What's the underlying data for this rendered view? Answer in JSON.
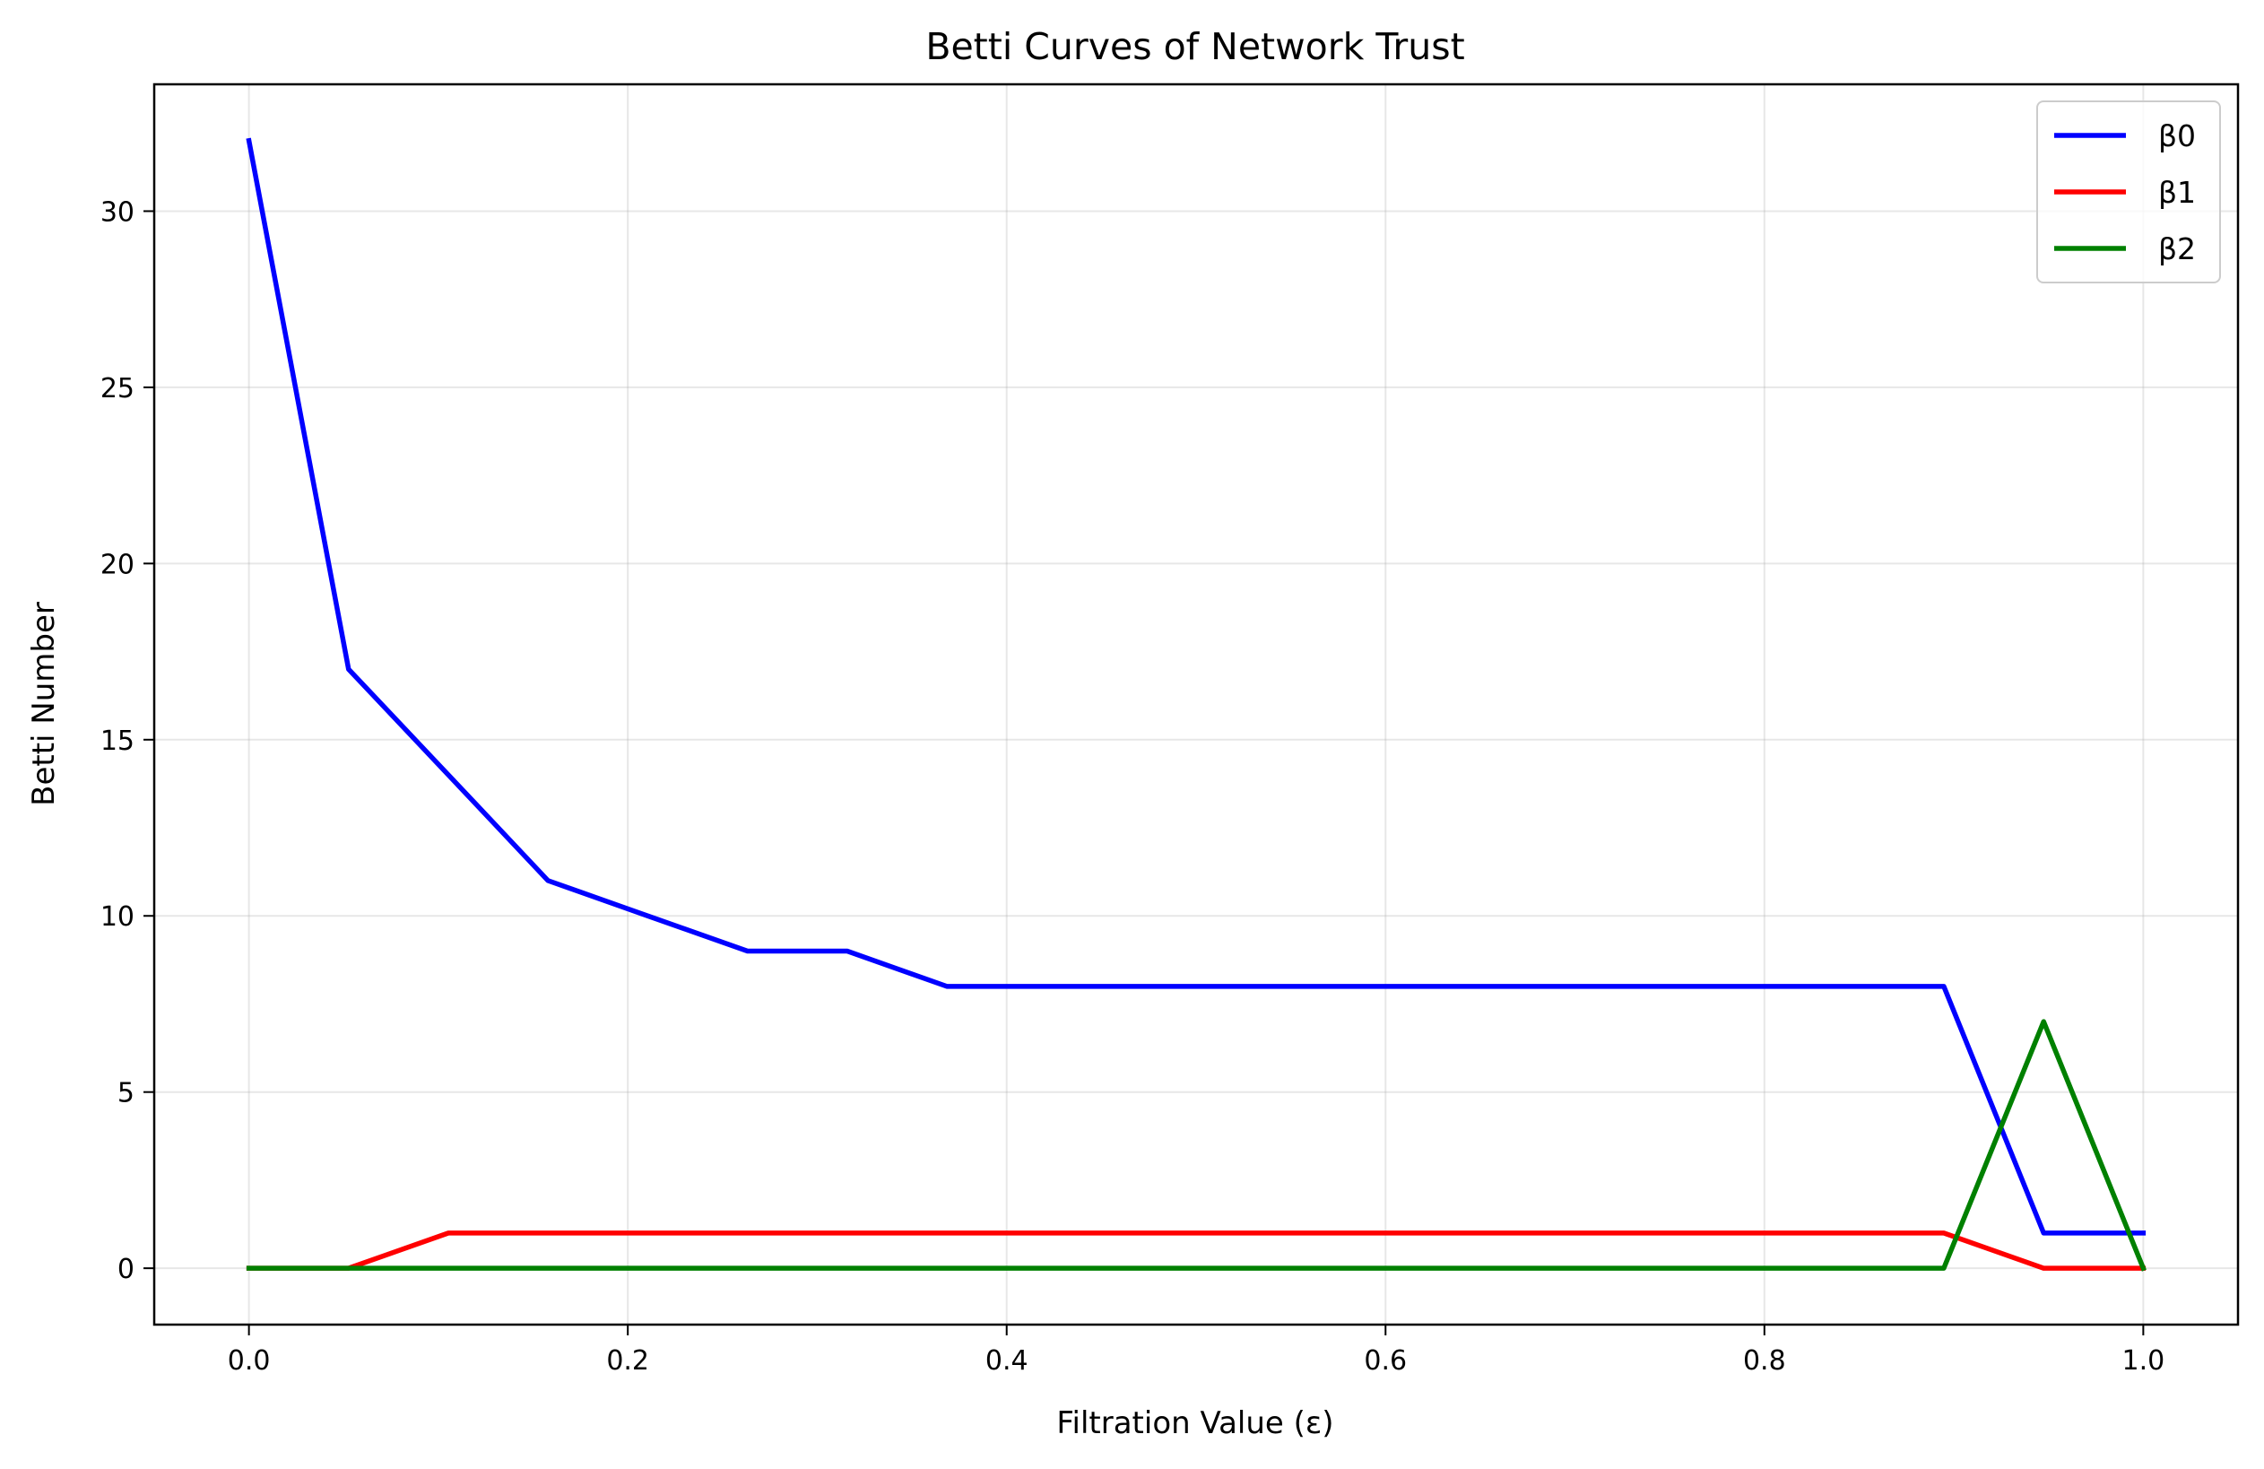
{
  "chart_data": {
    "type": "line",
    "title": "Betti Curves of Network Trust",
    "xlabel": "Filtration Value (ε)",
    "ylabel": "Betti Number",
    "xlim": [
      -0.05,
      1.05
    ],
    "ylim": [
      -1.6,
      33.6
    ],
    "xticks": [
      0.0,
      0.2,
      0.4,
      0.6,
      0.8,
      1.0
    ],
    "xtick_labels": [
      "0.0",
      "0.2",
      "0.4",
      "0.6",
      "0.8",
      "1.0"
    ],
    "yticks": [
      0,
      5,
      10,
      15,
      20,
      25,
      30
    ],
    "ytick_labels": [
      "0",
      "5",
      "10",
      "15",
      "20",
      "25",
      "30"
    ],
    "grid": true,
    "legend_position": "top-right",
    "series": [
      {
        "name": "β0",
        "color": "#0000ff",
        "x": [
          0.0,
          0.0526,
          0.1053,
          0.1579,
          0.2105,
          0.2632,
          0.3158,
          0.3684,
          0.8947,
          0.9474,
          1.0
        ],
        "y": [
          32,
          17,
          14,
          11,
          10,
          9,
          9,
          8,
          8,
          1,
          1
        ]
      },
      {
        "name": "β1",
        "color": "#ff0000",
        "x": [
          0.0,
          0.0526,
          0.1053,
          0.8947,
          0.9474,
          1.0
        ],
        "y": [
          0,
          0,
          1,
          1,
          0,
          0
        ]
      },
      {
        "name": "β2",
        "color": "#008000",
        "x": [
          0.0,
          0.8947,
          0.9474,
          1.0
        ],
        "y": [
          0,
          0,
          7,
          0
        ]
      }
    ]
  }
}
